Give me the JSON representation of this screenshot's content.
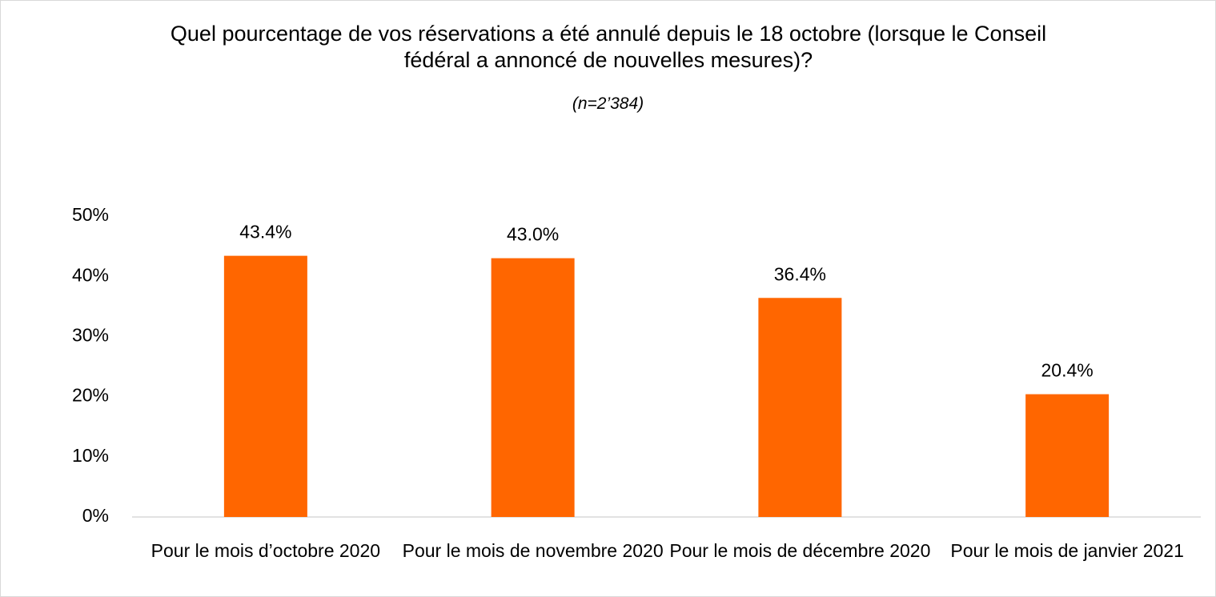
{
  "chart_data": {
    "type": "bar",
    "title": "Quel pourcentage de vos réservations a été annulé depuis le 18 octobre (lorsque le Conseil fédéral a annoncé de nouvelles mesures)?",
    "subtitle": "(n=2’384)",
    "categories": [
      "Pour le mois d’octobre 2020",
      "Pour le mois de novembre 2020",
      "Pour le mois de décembre 2020",
      "Pour le mois de janvier 2021"
    ],
    "values": [
      43.4,
      43.0,
      36.4,
      20.4
    ],
    "value_labels": [
      "43.4%",
      "43.0%",
      "36.4%",
      "20.4%"
    ],
    "color": "#ff6600",
    "ylim": [
      0,
      50
    ],
    "yticks": [
      {
        "value": 0,
        "label": "0%"
      },
      {
        "value": 10,
        "label": "10%"
      },
      {
        "value": 20,
        "label": "20%"
      },
      {
        "value": 30,
        "label": "30%"
      },
      {
        "value": 40,
        "label": "40%"
      },
      {
        "value": 50,
        "label": "50%"
      }
    ],
    "grid": false
  }
}
